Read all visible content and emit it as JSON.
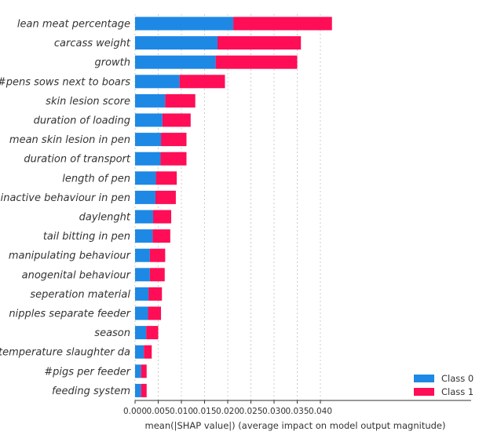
{
  "chart_data": {
    "type": "bar",
    "stacked": true,
    "orientation": "horizontal",
    "title": "",
    "xlabel": "mean(|SHAP value|) (average impact on model output magnitude)",
    "ylabel": "",
    "xlim": [
      0,
      0.044
    ],
    "xticks": [
      "0.000",
      "0.005",
      "0.010",
      "0.015",
      "0.020",
      "0.025",
      "0.030",
      "0.035",
      "0.040"
    ],
    "grid": "vertical",
    "legend_position": "bottom-right",
    "categories": [
      "lean meat percentage",
      "carcass weight",
      "growth",
      "#pens sows next to boars",
      "skin lesion score",
      "duration of loading",
      "mean skin lesion in pen",
      "duration of transport",
      "length of pen",
      "inactive behaviour in pen",
      "daylenght",
      "tail bitting in pen",
      "manipulating behaviour",
      "anogenital behaviour",
      "seperation material",
      "nipples separate feeder",
      "season",
      "temperature slaughter da",
      "#pigs per feeder",
      "feeding system"
    ],
    "series": [
      {
        "name": "Class 0",
        "color": "#1e88e5",
        "values": [
          0.0212,
          0.0178,
          0.0174,
          0.0096,
          0.0065,
          0.0059,
          0.0056,
          0.0055,
          0.0045,
          0.0044,
          0.0039,
          0.0038,
          0.0032,
          0.0032,
          0.0029,
          0.0028,
          0.0024,
          0.0019,
          0.0013,
          0.0013
        ]
      },
      {
        "name": "Class 1",
        "color": "#ff0d57",
        "values": [
          0.0213,
          0.018,
          0.0176,
          0.0098,
          0.0065,
          0.0061,
          0.0055,
          0.0056,
          0.0045,
          0.0044,
          0.0039,
          0.0038,
          0.0033,
          0.0032,
          0.0029,
          0.0028,
          0.0026,
          0.0017,
          0.0012,
          0.0012
        ]
      }
    ]
  }
}
